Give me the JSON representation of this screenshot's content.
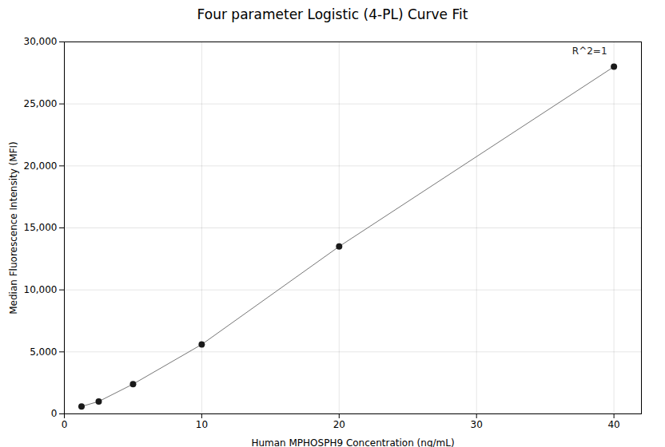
{
  "chart_data": {
    "type": "line",
    "title": "Four parameter Logistic (4-PL) Curve Fit",
    "xlabel": "Human MPHOSPH9 Concentration (ng/mL)",
    "ylabel": "Median Fluorescence Intensity (MFI)",
    "x": [
      1.25,
      2.5,
      5.0,
      10.0,
      20.0,
      40.0
    ],
    "series": [
      {
        "type": "line",
        "color": "#777777",
        "values": [
          600,
          1000,
          2400,
          5600,
          13500,
          28000
        ]
      },
      {
        "type": "scatter",
        "color": "#1a1a1a",
        "marker": "circle",
        "values": [
          600,
          1000,
          2400,
          5600,
          13500,
          28000
        ]
      }
    ],
    "xlim": [
      0,
      42
    ],
    "ylim": [
      0,
      30000
    ],
    "xticks": [
      0,
      10,
      20,
      30,
      40
    ],
    "yticks": [
      0,
      {
        "value": 5000,
        "label": "5,000"
      },
      {
        "value": 10000,
        "label": "10,000"
      },
      {
        "value": 15000,
        "label": "15,000"
      },
      {
        "value": 20000,
        "label": "20,000"
      },
      {
        "value": 25000,
        "label": "25,000"
      },
      {
        "value": 30000,
        "label": "30,000"
      }
    ],
    "grid": true,
    "annotations": [
      {
        "text": "R^2=1",
        "x": 39.5,
        "y": 29000
      }
    ]
  }
}
